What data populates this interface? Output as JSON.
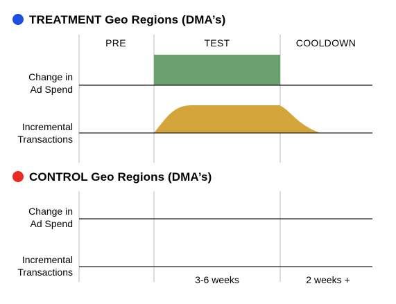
{
  "treatment": {
    "title": "TREATMENT Geo Regions (DMA’s)",
    "bullet_color": "#1f4fe0",
    "row_labels": {
      "ad_spend": [
        "Change in",
        "Ad Spend"
      ],
      "transactions": [
        "Incremental",
        "Transactions"
      ]
    },
    "ad_spend_fill_color": "#6aa06f",
    "transactions_fill_color": "#d4a53a"
  },
  "control": {
    "title": "CONTROL Geo Regions (DMA’s)",
    "bullet_color": "#ec2a22",
    "row_labels": {
      "ad_spend": [
        "Change in",
        "Ad Spend"
      ],
      "transactions": [
        "Incremental",
        "Transactions"
      ]
    }
  },
  "phases": [
    {
      "key": "pre",
      "label": "PRE",
      "duration": ""
    },
    {
      "key": "test",
      "label": "TEST",
      "duration": "3-6 weeks"
    },
    {
      "key": "cooldown",
      "label": "COOLDOWN",
      "duration": "2 weeks +"
    }
  ]
}
